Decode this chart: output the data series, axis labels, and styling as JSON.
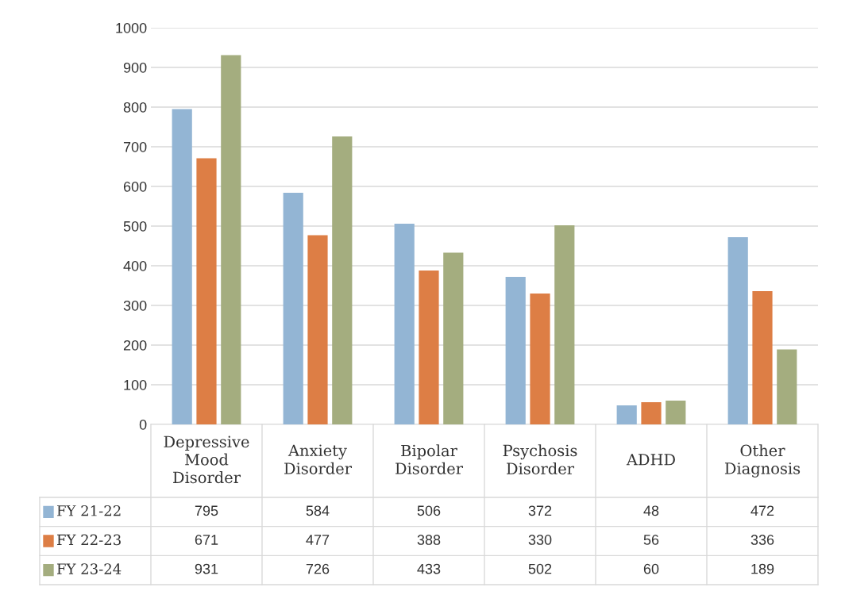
{
  "chart_data": {
    "type": "bar",
    "categories": [
      "Depressive Mood Disorder",
      "Anxiety Disorder",
      "Bipolar Disorder",
      "Psychosis Disorder",
      "ADHD",
      "Other Diagnosis"
    ],
    "series": [
      {
        "name": "FY 21-22",
        "color": "#93b5d4",
        "values": [
          795,
          584,
          506,
          372,
          48,
          472
        ]
      },
      {
        "name": "FY 22-23",
        "color": "#dd7e45",
        "values": [
          671,
          477,
          388,
          330,
          56,
          336
        ]
      },
      {
        "name": "FY 23-24",
        "color": "#a4ad7f",
        "values": [
          931,
          726,
          433,
          502,
          60,
          189
        ]
      }
    ],
    "ylim": [
      0,
      1000
    ],
    "yticks": [
      0,
      100,
      200,
      300,
      400,
      500,
      600,
      700,
      800,
      900,
      1000
    ],
    "grid": "y",
    "data_labels": true,
    "legend": "bottom left"
  }
}
